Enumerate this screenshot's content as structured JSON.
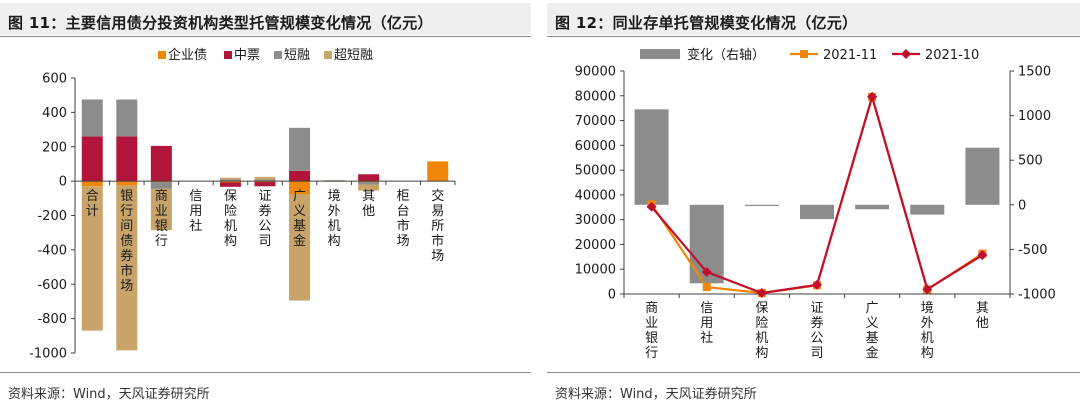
{
  "left": {
    "title": "图 11：主要信用债分投资机构类型托管规模变化情况（亿元）",
    "source": "资料来源：Wind，天风证券研究所"
  },
  "right": {
    "title": "图 12：同业存单托管规模变化情况（亿元）",
    "source": "资料来源：Wind，天风证券研究所"
  },
  "chart_data": [
    {
      "type": "bar",
      "stacked": true,
      "title": "图 11：主要信用债分投资机构类型托管规模变化情况（亿元）",
      "categories": [
        "合计",
        "银行间债券市场",
        "商业银行",
        "信用社",
        "保险机构",
        "证券公司",
        "广义基金",
        "境外机构",
        "其他",
        "柜台市场",
        "交易所市场"
      ],
      "series": [
        {
          "name": "企业债",
          "color": "#f0860a",
          "values": [
            -30,
            -25,
            -5,
            0,
            -8,
            -5,
            -75,
            -3,
            -5,
            0,
            115
          ]
        },
        {
          "name": "中票",
          "color": "#b1153a",
          "values": [
            260,
            260,
            205,
            0,
            -25,
            -25,
            60,
            0,
            40,
            0,
            0
          ]
        },
        {
          "name": "短融",
          "color": "#8c8c8c",
          "values": [
            215,
            215,
            -40,
            0,
            10,
            10,
            250,
            5,
            -15,
            0,
            0
          ]
        },
        {
          "name": "超短融",
          "color": "#c8a46b",
          "values": [
            -840,
            -960,
            -240,
            0,
            10,
            15,
            -620,
            0,
            -35,
            0,
            0
          ]
        }
      ],
      "ylim": [
        -1000,
        600
      ],
      "yticks": [
        -1000,
        -800,
        -600,
        -400,
        -200,
        0,
        200,
        400,
        600
      ],
      "legend": "top"
    },
    {
      "type": "bar+line",
      "title": "图 12：同业存单托管规模变化情况（亿元）",
      "categories": [
        "商业银行",
        "信用社",
        "保险机构",
        "证券公司",
        "广义基金",
        "境外机构",
        "其他"
      ],
      "series": [
        {
          "name": "变化（右轴）",
          "kind": "bar",
          "axis": "right",
          "color": "#8c8c8c",
          "values": [
            1070,
            -880,
            -10,
            -160,
            -50,
            -110,
            640
          ]
        },
        {
          "name": "2021-11",
          "kind": "line",
          "axis": "left",
          "color": "#f0860a",
          "values": [
            36200,
            2800,
            400,
            3500,
            79500,
            1800,
            16300
          ]
        },
        {
          "name": "2021-10",
          "kind": "line",
          "axis": "left",
          "color": "#c0102e",
          "values": [
            35200,
            8900,
            400,
            3700,
            79600,
            1900,
            15700
          ]
        }
      ],
      "ylim": [
        0,
        90000
      ],
      "yticks": [
        0,
        10000,
        20000,
        30000,
        40000,
        50000,
        60000,
        70000,
        80000,
        90000
      ],
      "y2lim": [
        -1000,
        1500
      ],
      "y2ticks": [
        -1000,
        -500,
        0,
        500,
        1000,
        1500
      ],
      "legend": "top"
    }
  ]
}
